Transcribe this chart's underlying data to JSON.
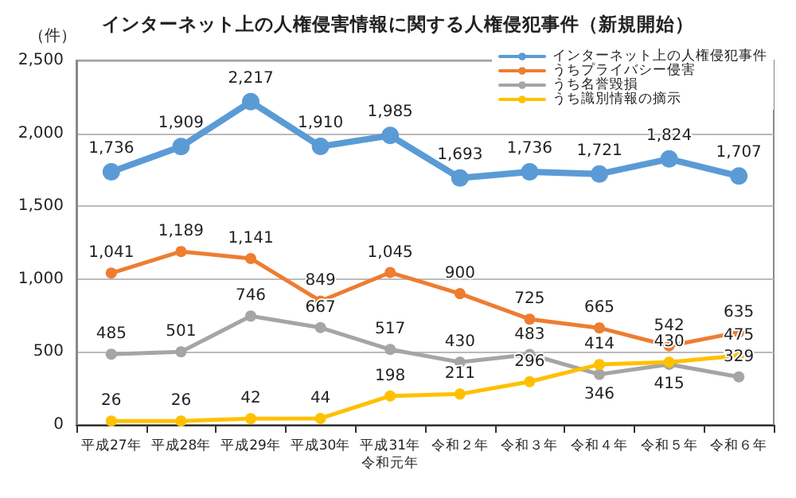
{
  "chart_data": {
    "type": "line",
    "title": "インターネット上の人権侵害情報に関する人権侵犯事件（新規開始）",
    "ylabel": "（件）",
    "categories": [
      "平成27年",
      "平成28年",
      "平成29年",
      "平成30年",
      "平成31年令和元年",
      "令和２年",
      "令和３年",
      "令和４年",
      "令和５年",
      "令和６年"
    ],
    "series": [
      {
        "name": "インターネット上の人権侵犯事件",
        "color": "#5b9bd5",
        "values": [
          1736,
          1909,
          2217,
          1910,
          1985,
          1693,
          1736,
          1721,
          1824,
          1707
        ],
        "value_labels": [
          "1,736",
          "1,909",
          "2,217",
          "1,910",
          "1,985",
          "1,693",
          "1,736",
          "1,721",
          "1,824",
          "1,707"
        ]
      },
      {
        "name": "うちプライバシー侵害",
        "color": "#ed7d31",
        "values": [
          1041,
          1189,
          1141,
          849,
          1045,
          900,
          725,
          665,
          542,
          635
        ],
        "value_labels": [
          "1,041",
          "1,189",
          "1,141",
          "849",
          "1,045",
          "900",
          "725",
          "665",
          "542",
          "635"
        ]
      },
      {
        "name": "うち名誉毀損",
        "color": "#a5a5a5",
        "values": [
          485,
          501,
          746,
          667,
          517,
          430,
          483,
          346,
          415,
          329
        ],
        "value_labels": [
          "485",
          "501",
          "746",
          "667",
          "517",
          "430",
          "483",
          "346",
          "415",
          "329"
        ]
      },
      {
        "name": "うち識別情報の摘示",
        "color": "#ffc000",
        "values": [
          26,
          26,
          42,
          44,
          198,
          211,
          296,
          414,
          430,
          475
        ],
        "value_labels": [
          "26",
          "26",
          "42",
          "44",
          "198",
          "211",
          "296",
          "414",
          "430",
          "475"
        ]
      }
    ],
    "ylim": [
      0,
      2500
    ],
    "yticks": [
      0,
      {
        "value": 500,
        "label": "500"
      },
      {
        "value": 1000,
        "label": "1,000"
      },
      {
        "value": 1500,
        "label": "1,500"
      },
      {
        "value": 2000,
        "label": "2,000"
      },
      {
        "value": 2500,
        "label": "2,500"
      }
    ],
    "grid": "y",
    "legend": "top right",
    "marker": "circle",
    "line_style": "solid"
  }
}
